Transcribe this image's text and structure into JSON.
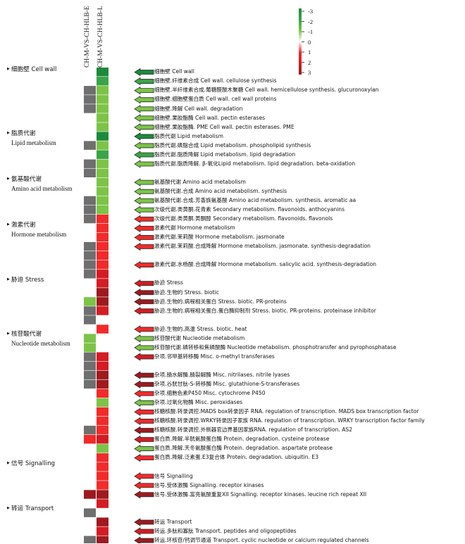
{
  "columns": [
    "CH-M-VS-CH-HLB-E",
    "CH-M-VS-CH-HLB-L"
  ],
  "legend": {
    "ticks": [
      "-3",
      "-2",
      "-1",
      "0",
      "1",
      "2",
      "3"
    ]
  },
  "palette": {
    "g3": "#1b8a3c",
    "g2": "#3aa447",
    "g1": "#7cc447",
    "r1": "#f22a2a",
    "r2": "#d51c22",
    "r3": "#9e1a1e",
    "na": "#6f6f6f",
    "none": "#ffffff"
  },
  "categories": [
    {
      "icon": "bullet-icon",
      "zh": "细胞壁 Cell wall",
      "en": ""
    },
    {
      "icon": "bullet-icon",
      "zh": "脂质代谢",
      "en": "Lipid metabolism"
    },
    {
      "icon": "bullet-icon",
      "zh": "氨基酸代谢",
      "en": "Amino acid metabolism"
    },
    {
      "icon": "bullet-icon",
      "zh": "激素代谢",
      "en": "Hormone metabolism"
    },
    {
      "icon": "bullet-icon",
      "zh": "胁迫 Stress",
      "en": ""
    },
    {
      "icon": "bullet-icon",
      "zh": "核苷酸代谢",
      "en": "Nucleotide metabolism"
    },
    {
      "icon": "bullet-icon",
      "zh": "信号 Signalling",
      "en": ""
    },
    {
      "icon": "bullet-icon",
      "zh": "转运 Transport",
      "en": ""
    }
  ],
  "rows": [
    {
      "label": "细胞壁 Cell wall",
      "e": null,
      "l": "g3",
      "arrow": "g3"
    },
    {
      "label": "细胞壁.纤维素合成 Cell wall. cellulose synthesis",
      "e": null,
      "l": "g2",
      "arrow": "g2"
    },
    {
      "label": "细胞壁.半纤维素合成.葡糖醛酸木聚糖 Cell wall. hemicellulose synthesis. glucuronoxylan",
      "e": "na",
      "l": "g1",
      "arrow": "g1"
    },
    {
      "label": "细胞壁.细胞壁蛋白质 Cell wall. cell wall proteins",
      "e": "na",
      "l": "g1",
      "arrow": "g1"
    },
    {
      "label": "细胞壁.降解 Cell wall. degradation",
      "e": "na",
      "l": "g1",
      "arrow": "g1"
    },
    {
      "label": "细胞壁.果胶酯酶 Cell wall. pectin esterases",
      "e": null,
      "l": "g1",
      "arrow": "g1"
    },
    {
      "label": "细胞壁.果胶酯酶. PME Cell wall. pectin esterases. PME",
      "e": null,
      "l": "g1",
      "arrow": "g1"
    },
    {
      "label": "脂质代谢 Lipid metabolism",
      "e": null,
      "l": "g3",
      "arrow": "g3"
    },
    {
      "label": "脂质代谢.磷脂合成 Lipid metabolism. phospholipid synthesis",
      "e": "na",
      "l": "g1",
      "arrow": "g1"
    },
    {
      "label": "脂质代谢.脂质降解 Lipid metabolism. lipid degradation",
      "e": null,
      "l": "g2",
      "arrow": "g2"
    },
    {
      "label": "脂质代谢.脂质降解. β-氧化Lipid metabolism. lipid degradation. beta-oxidation",
      "e": "na",
      "l": "g1",
      "arrow": "g1"
    },
    {
      "label": "",
      "e": "na",
      "l": "g1",
      "arrow": null
    },
    {
      "label": "氨基酸代谢 Amino acid metabolism",
      "e": null,
      "l": "g1",
      "arrow": "g1"
    },
    {
      "label": "氨基酸代谢.合成 Amino acid metabolism. synthesis",
      "e": null,
      "l": "g1",
      "arrow": "g1"
    },
    {
      "label": "氨基酸代谢.合成.芳香族氨基酸 Amino acid metabolism. synthesis. aromatic aa",
      "e": "na",
      "l": "g1",
      "arrow": "g1"
    },
    {
      "label": "次级代谢.类黄酮.花青素 Secondary metabolism. flavonoids. anthocyanins",
      "e": "na",
      "l": "g1",
      "arrow": "g1"
    },
    {
      "label": "次级代谢.类黄酮.黄酮醇 Secondary metabolism. flavonoids. flavonols",
      "e": "na",
      "l": "r1",
      "arrow": "r1"
    },
    {
      "label": "激素代谢 Hormone metabolism",
      "e": null,
      "l": "r1",
      "arrow": "r1"
    },
    {
      "label": "激素代谢.茉莉酸 Hormone metabolism. jasmonate",
      "e": null,
      "l": "r1",
      "arrow": "r1"
    },
    {
      "label": "激素代谢.茉莉酸.合成降解 Hormone metabolism. jasmonate. synthesis-degradation",
      "e": "na",
      "l": "r1",
      "arrow": "r1"
    },
    {
      "label": "",
      "e": "na",
      "l": "r1",
      "arrow": null
    },
    {
      "label": "激素代谢.水杨酸.合成降解 Hormone metabolism. salicylic acid. synthesis-degradation",
      "e": "na",
      "l": "r1",
      "arrow": "r1"
    },
    {
      "label": "",
      "e": "na",
      "l": "r2",
      "arrow": null
    },
    {
      "label": "胁迫 Stress",
      "e": null,
      "l": "r2",
      "arrow": "r2"
    },
    {
      "label": "胁迫.生物的 Stress. biotic",
      "e": null,
      "l": "r3",
      "arrow": "r3"
    },
    {
      "label": "胁迫.生物的.病程相关蛋白 Stress. biotic. PR-proteins",
      "e": "g1",
      "l": "r3",
      "arrow": "r3"
    },
    {
      "label": "胁迫.生物的.病程相关蛋白.蛋白酶抑制剂 Stress. biotic. PR-proteins. proteinase inhibitor",
      "e": "na",
      "l": "r2",
      "arrow": "r2"
    },
    {
      "label": "",
      "e": "na",
      "l": null,
      "arrow": null
    },
    {
      "label": "胁迫.生物的.高温 Stress. biotic. heat",
      "e": null,
      "l": "r1",
      "arrow": "r1"
    },
    {
      "label": "核苷酸代谢 Nucleotide metabolism",
      "e": "g1",
      "l": null,
      "arrow": "g1"
    },
    {
      "label": "核苷酸代谢.磷转移和焦磷酸酶 Nucleotide metabolism. phosphotransfer and pyrophosphatase",
      "e": "g1",
      "l": null,
      "arrow": "g1"
    },
    {
      "label": "杂项.邻甲基转移酶 Misc. o-methyl transferases",
      "e": "na",
      "l": "r2",
      "arrow": "r2"
    },
    {
      "label": "",
      "e": "na",
      "l": "r2",
      "arrow": null
    },
    {
      "label": "杂项.腈水解酶.腈裂解酶 Misc. nitrilases. nitrile lyases",
      "e": "na",
      "l": "r3",
      "arrow": "r3"
    },
    {
      "label": "杂项.谷胱甘肽-S-转移酶 Misc. glutathione-S-transferases",
      "e": "na",
      "l": "r3",
      "arrow": "r3"
    },
    {
      "label": "杂项.细胞色素P450 Misc. cytochrome P450",
      "e": null,
      "l": "r1",
      "arrow": "r1"
    },
    {
      "label": "杂项.过氧化物酶 Misc. peroxidases",
      "e": null,
      "l": "g1",
      "arrow": "g1"
    },
    {
      "label": "核糖核酸.转录调控.MADS box转录因子 RNA. regulation of transcription. MADS box transcription factor",
      "e": null,
      "l": "r1",
      "arrow": "r1"
    },
    {
      "label": "核糖核酸.转录调控.WRKY转录因子家族 RNA. regulation of transcription. WRKY transcription factor family",
      "e": null,
      "l": "r1",
      "arrow": "r1"
    },
    {
      "label": "核糖核酸.转录调控.外侧器官边界基因家族RNA. regulation of transcription. AS2",
      "e": "na",
      "l": "r1",
      "arrow": "r3"
    },
    {
      "label": "蛋白质.降解.半胱氨酸蛋白酶 Protein. degradation. cysteine protease",
      "e": "r1",
      "l": "r2",
      "arrow": "r2"
    },
    {
      "label": "蛋白质.降解.天冬氨酸蛋白酶 Protein. degradation. aspartate protease",
      "e": null,
      "l": "g1",
      "arrow": "g1"
    },
    {
      "label": "蛋白质.降解.泛素蛋.E3复合体 Protein. degradation. ubiquitin. E3",
      "e": null,
      "l": "r1",
      "arrow": "r1"
    },
    {
      "label": "",
      "e": null,
      "l": "r1",
      "arrow": null
    },
    {
      "label": "信号 Signalling",
      "e": null,
      "l": "r1",
      "arrow": "r1"
    },
    {
      "label": "信号.受体激酶 Signalling. receptor kinases",
      "e": null,
      "l": "r1",
      "arrow": "r1"
    },
    {
      "label": "信号.受体激酶.富亮氨酸重复XII Signalling. receptor kinases. leucine rich repeat XII",
      "e": "r3",
      "l": "r3",
      "arrow": "r3"
    },
    {
      "label": "",
      "e": null,
      "l": "r2",
      "arrow": null
    },
    {
      "label": "",
      "e": "na",
      "l": null,
      "arrow": null
    },
    {
      "label": "转运 Transport",
      "e": null,
      "l": "r3",
      "arrow": "r3"
    },
    {
      "label": "转运.多肽和寡肽 Transport. peptides and oligopeptides",
      "e": null,
      "l": "r2",
      "arrow": "r2"
    },
    {
      "label": "转运.环核苷/钙调节通道 Transport. cyclic nucleotide or calcium regulated channels",
      "e": "na",
      "l": "r3",
      "arrow": "r3"
    }
  ]
}
